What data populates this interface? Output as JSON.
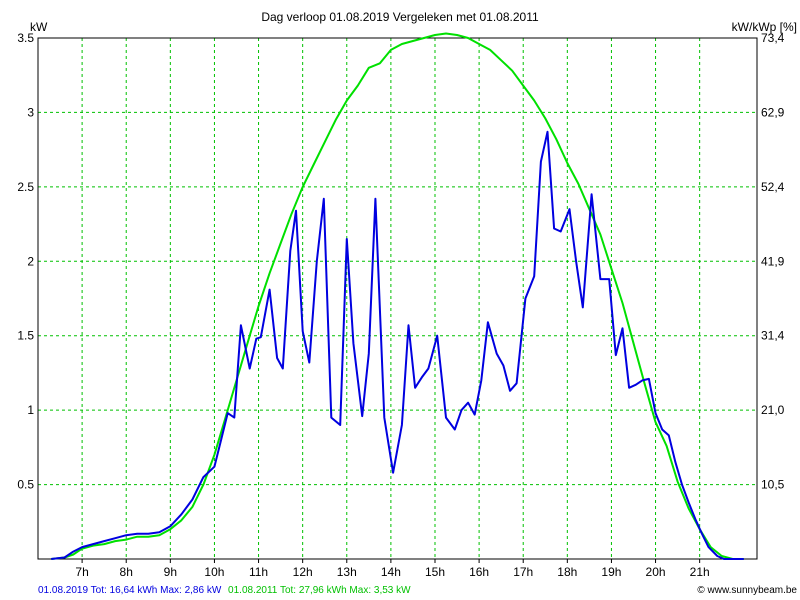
{
  "chart_data": {
    "type": "line",
    "title": "Dag  verloop 01.08.2019   Vergeleken met 01.08.2011",
    "ylabel_left": "kW",
    "ylabel_right": "kW/kWp [%]",
    "ylim": [
      0,
      3.5
    ],
    "xlim": [
      6.0,
      22.3
    ],
    "grid": true,
    "x_ticks": [
      7,
      8,
      9,
      10,
      11,
      12,
      13,
      14,
      15,
      16,
      17,
      18,
      19,
      20,
      21
    ],
    "x_tick_labels": [
      "7h",
      "8h",
      "9h",
      "10h",
      "11h",
      "12h",
      "13h",
      "14h",
      "15h",
      "16h",
      "17h",
      "18h",
      "19h",
      "20h",
      "21h"
    ],
    "y_ticks_left": [
      0.5,
      1,
      1.5,
      2,
      2.5,
      3,
      3.5
    ],
    "y_tick_labels_left": [
      "0.5",
      "1",
      "1.5",
      "2",
      "2.5",
      "3",
      "3.5"
    ],
    "y_ticks_right": [
      0.5,
      1,
      1.5,
      2,
      2.5,
      3,
      3.5
    ],
    "y_tick_labels_right": [
      "10,5",
      "21,0",
      "31,4",
      "41,9",
      "52,4",
      "62,9",
      "73,4"
    ],
    "series": [
      {
        "name": "01.08.2011",
        "color": "#00e000",
        "x": [
          6.3,
          6.6,
          6.8,
          7.0,
          7.25,
          7.5,
          7.75,
          8.0,
          8.25,
          8.5,
          8.75,
          9.0,
          9.25,
          9.5,
          9.75,
          10.0,
          10.25,
          10.5,
          10.75,
          11.0,
          11.25,
          11.5,
          11.75,
          12.0,
          12.25,
          12.5,
          12.75,
          13.0,
          13.25,
          13.5,
          13.75,
          14.0,
          14.25,
          14.5,
          14.75,
          15.0,
          15.25,
          15.5,
          15.75,
          16.0,
          16.25,
          16.5,
          16.75,
          17.0,
          17.25,
          17.5,
          17.75,
          18.0,
          18.25,
          18.5,
          18.75,
          19.0,
          19.25,
          19.5,
          19.75,
          20.0,
          20.25,
          20.5,
          20.75,
          21.0,
          21.25,
          21.5,
          21.75,
          22.0
        ],
        "y": [
          0,
          0.01,
          0.03,
          0.07,
          0.09,
          0.1,
          0.12,
          0.13,
          0.15,
          0.15,
          0.16,
          0.2,
          0.26,
          0.35,
          0.5,
          0.7,
          0.95,
          1.2,
          1.45,
          1.7,
          1.92,
          2.12,
          2.32,
          2.5,
          2.65,
          2.8,
          2.95,
          3.08,
          3.18,
          3.3,
          3.33,
          3.42,
          3.46,
          3.48,
          3.5,
          3.52,
          3.53,
          3.52,
          3.5,
          3.46,
          3.42,
          3.35,
          3.28,
          3.18,
          3.08,
          2.96,
          2.82,
          2.66,
          2.52,
          2.35,
          2.18,
          1.95,
          1.72,
          1.45,
          1.18,
          0.92,
          0.76,
          0.52,
          0.34,
          0.2,
          0.08,
          0.02,
          0,
          0
        ]
      },
      {
        "name": "01.08.2019",
        "color": "#0000e0",
        "x": [
          6.3,
          6.6,
          6.8,
          7.0,
          7.25,
          7.5,
          7.75,
          8.0,
          8.25,
          8.5,
          8.75,
          9.0,
          9.25,
          9.5,
          9.75,
          10.0,
          10.15,
          10.3,
          10.45,
          10.6,
          10.8,
          10.95,
          11.05,
          11.25,
          11.42,
          11.55,
          11.72,
          11.85,
          12.0,
          12.15,
          12.32,
          12.48,
          12.65,
          12.85,
          13.0,
          13.15,
          13.35,
          13.5,
          13.65,
          13.85,
          14.05,
          14.25,
          14.4,
          14.55,
          14.7,
          14.85,
          15.05,
          15.25,
          15.45,
          15.6,
          15.75,
          15.9,
          16.05,
          16.2,
          16.4,
          16.55,
          16.7,
          16.85,
          17.05,
          17.25,
          17.4,
          17.55,
          17.7,
          17.85,
          18.05,
          18.2,
          18.35,
          18.55,
          18.75,
          18.95,
          19.1,
          19.25,
          19.4,
          19.55,
          19.7,
          19.85,
          20.0,
          20.15,
          20.3,
          20.45,
          20.6,
          20.75,
          20.9,
          21.05,
          21.2,
          21.4,
          21.55,
          21.7,
          21.85,
          22.0
        ],
        "y": [
          0,
          0.01,
          0.05,
          0.08,
          0.1,
          0.12,
          0.14,
          0.16,
          0.17,
          0.17,
          0.18,
          0.22,
          0.3,
          0.4,
          0.55,
          0.62,
          0.8,
          0.98,
          0.95,
          1.57,
          1.28,
          1.48,
          1.49,
          1.81,
          1.35,
          1.28,
          2.07,
          2.34,
          1.53,
          1.32,
          2.0,
          2.42,
          0.95,
          0.9,
          2.15,
          1.45,
          0.96,
          1.38,
          2.42,
          0.95,
          0.58,
          0.9,
          1.57,
          1.15,
          1.22,
          1.28,
          1.5,
          0.95,
          0.87,
          1.0,
          1.05,
          0.97,
          1.2,
          1.59,
          1.38,
          1.3,
          1.13,
          1.18,
          1.75,
          1.9,
          2.67,
          2.87,
          2.22,
          2.2,
          2.35,
          2.0,
          1.69,
          2.45,
          1.88,
          1.88,
          1.37,
          1.55,
          1.15,
          1.17,
          1.2,
          1.21,
          0.98,
          0.87,
          0.83,
          0.65,
          0.5,
          0.38,
          0.27,
          0.17,
          0.08,
          0.02,
          0,
          0,
          0,
          0
        ]
      }
    ]
  },
  "footer": {
    "left_prefix": "01.08.2019 Tot: 16,64 kWh Max: 2,86 kW",
    "right_part": "01.08.2011 Tot: 27,96 kWh Max: 3,53 kW",
    "copyright": "© www.sunnybeam.be"
  },
  "colors": {
    "grid": "#00c000",
    "series_2011": "#00e000",
    "series_2019": "#0000e0"
  }
}
